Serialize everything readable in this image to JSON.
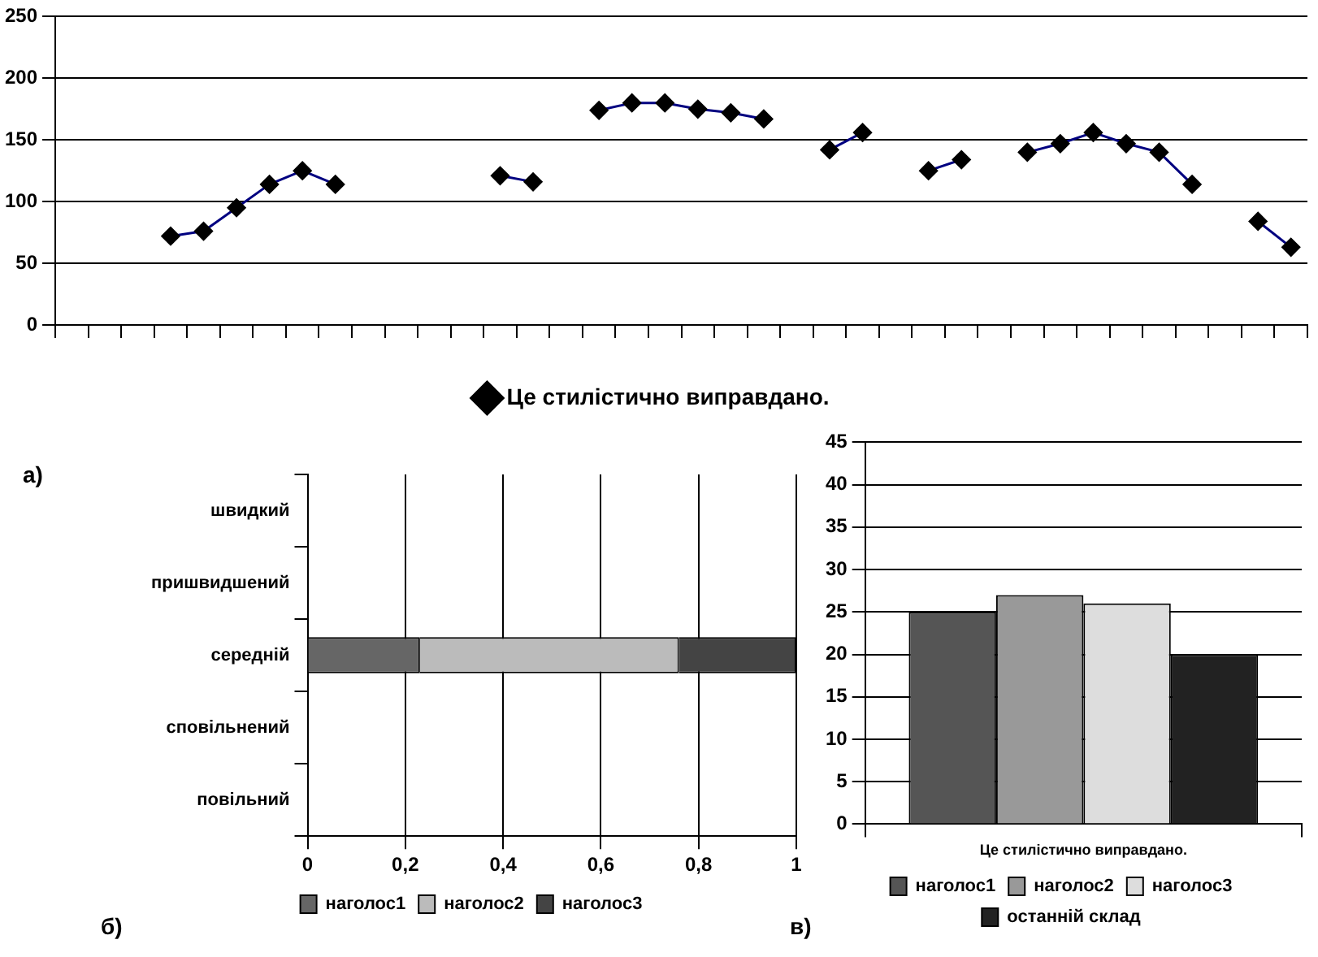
{
  "chart_data": [
    {
      "type": "line",
      "categories": [
        null,
        null,
        null,
        null,
        null,
        null,
        null,
        null,
        null,
        null,
        null,
        null,
        null,
        null,
        null,
        null,
        null,
        null,
        null,
        null,
        null,
        null,
        null,
        null,
        null,
        null,
        null,
        null,
        null,
        null,
        null,
        null,
        null,
        null,
        null,
        null,
        null,
        null
      ],
      "series": [
        {
          "name": "Це стилістично виправдано.",
          "color": "#000080",
          "values": [
            null,
            null,
            null,
            72,
            76,
            95,
            114,
            125,
            114,
            null,
            null,
            null,
            null,
            121,
            116,
            null,
            174,
            180,
            180,
            175,
            172,
            167,
            null,
            142,
            156,
            null,
            125,
            134,
            null,
            140,
            147,
            156,
            147,
            140,
            114,
            null,
            84,
            63
          ]
        }
      ],
      "ylim": [
        0,
        250
      ],
      "yticks": [
        0,
        50,
        100,
        150,
        200,
        250
      ],
      "grid": "y",
      "legend": "bottom",
      "marker": "diamond",
      "tick_labels": "y",
      "annotations": [
        "а)"
      ]
    },
    {
      "type": "bar",
      "orientation": "horizontal",
      "stacked": true,
      "categories": [
        "швидкий",
        "пришвидшений",
        "середній",
        "сповільнений",
        "повільний"
      ],
      "series": [
        {
          "name": "наголос1",
          "color": "#666666",
          "values": [
            null,
            null,
            0.23,
            null,
            null
          ]
        },
        {
          "name": "наголос2",
          "color": "#bbbbbb",
          "values": [
            null,
            null,
            0.53,
            null,
            null
          ]
        },
        {
          "name": "наголос3",
          "color": "#444444",
          "values": [
            null,
            null,
            0.24,
            null,
            null
          ]
        }
      ],
      "xlim": [
        0,
        1
      ],
      "xticks": [
        0,
        {
          "value": 0.2,
          "label": "0,2"
        },
        {
          "value": 0.4,
          "label": "0,4"
        },
        {
          "value": 0.6,
          "label": "0,6"
        },
        {
          "value": 0.8,
          "label": "0,8"
        },
        1
      ],
      "grid": "x",
      "legend": "bottom",
      "annotations": [
        "б)"
      ]
    },
    {
      "type": "bar",
      "categories": [
        "Це стилістично виправдано."
      ],
      "series": [
        {
          "name": "наголос1",
          "color": "#555555",
          "values": [
            25
          ]
        },
        {
          "name": "наголос2",
          "color": "#999999",
          "values": [
            27
          ]
        },
        {
          "name": "наголос3",
          "color": "#dddddd",
          "values": [
            26
          ]
        },
        {
          "name": "останній склад",
          "color": "#222222",
          "values": [
            20
          ]
        }
      ],
      "ylim": [
        0,
        45
      ],
      "yticks": [
        0,
        5,
        10,
        15,
        20,
        25,
        30,
        35,
        40,
        45
      ],
      "grid": "y",
      "legend": "bottom",
      "annotations": [
        "в)"
      ]
    }
  ]
}
